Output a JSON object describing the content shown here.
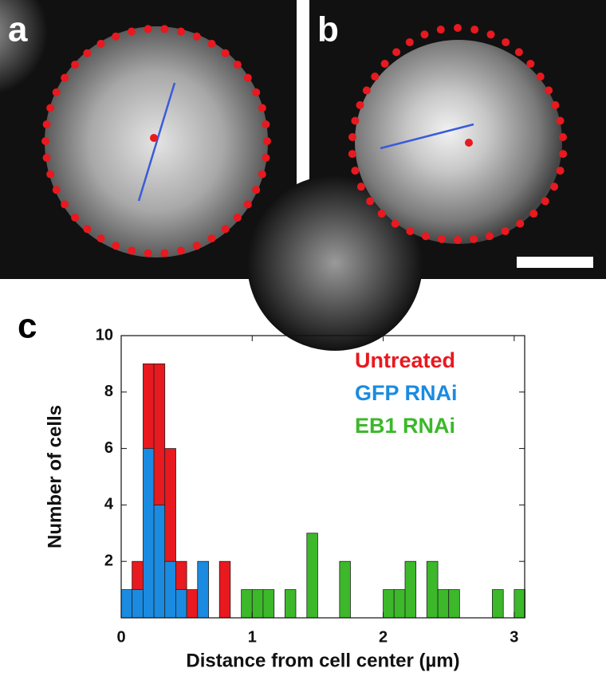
{
  "panel_labels": [
    "a",
    "b",
    "c"
  ],
  "chart_data": {
    "type": "histogram",
    "xlabel": "Distance from cell center (µm)",
    "ylabel": "Number of cells",
    "bins": [
      0,
      0.083,
      0.167,
      0.25,
      0.333,
      0.417,
      0.5,
      0.583,
      0.667,
      0.75,
      0.833,
      0.917,
      1,
      1.083,
      1.167,
      1.25,
      1.333,
      1.417,
      1.5,
      1.583,
      1.667,
      1.75,
      1.833,
      1.917,
      2,
      2.083,
      2.167,
      2.25,
      2.333,
      2.417,
      2.5,
      2.583,
      2.667,
      2.75,
      2.833,
      2.917,
      3,
      3.083
    ],
    "series": [
      {
        "name": "Untreated",
        "color": "#e8191f",
        "values": [
          0,
          1,
          3,
          5,
          4,
          1,
          1,
          0,
          0,
          2,
          0,
          0,
          0,
          0,
          0,
          0,
          0,
          0,
          0,
          0,
          0,
          0,
          0,
          0,
          0,
          0,
          0,
          0,
          0,
          0,
          0,
          0,
          0,
          0,
          0,
          0,
          0
        ]
      },
      {
        "name": "GFP RNAi",
        "color": "#1a8be0",
        "values": [
          1,
          1,
          6,
          4,
          2,
          1,
          0,
          2,
          0,
          0,
          0,
          0,
          0,
          0,
          0,
          0,
          0,
          0,
          0,
          0,
          0,
          0,
          0,
          0,
          0,
          0,
          0,
          0,
          0,
          0,
          0,
          0,
          0,
          0,
          0,
          0,
          0
        ]
      },
      {
        "name": "EB1 RNAi",
        "color": "#3cb82a",
        "values": [
          0,
          0,
          0,
          0,
          0,
          0,
          0,
          0,
          0,
          0,
          0,
          1,
          1,
          1,
          0,
          1,
          0,
          3,
          0,
          0,
          2,
          0,
          0,
          0,
          1,
          1,
          2,
          0,
          2,
          1,
          1,
          0,
          0,
          0,
          1,
          0,
          1
        ]
      }
    ],
    "xlim": [
      0,
      3.08
    ],
    "ylim": [
      0,
      10
    ],
    "xticks": [
      0,
      1,
      2,
      3
    ],
    "yticks": [
      2,
      4,
      6,
      8,
      10
    ]
  }
}
